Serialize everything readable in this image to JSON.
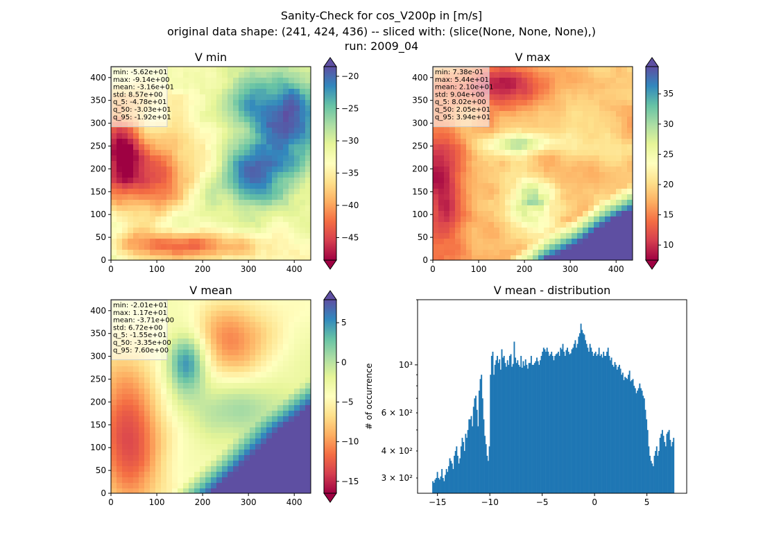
{
  "suptitle": {
    "line1": "Sanity-Check for cos_V200p in [m/s]",
    "line2": "original data shape: (241, 424, 436) -- sliced with: (slice(None, None, None),)",
    "line3": "run: 2009_04"
  },
  "colormap": {
    "name": "Spectral",
    "stops": [
      "#9e0142",
      "#d53e4f",
      "#f46d43",
      "#fdae61",
      "#fee08b",
      "#ffffbf",
      "#e6f598",
      "#abdda4",
      "#66c2a5",
      "#3288bd",
      "#5e4fa2"
    ]
  },
  "bar_color": "#1f77b4",
  "chart_data": [
    {
      "type": "heatmap",
      "title": "V min",
      "xlim": [
        0,
        436
      ],
      "ylim": [
        0,
        424
      ],
      "xticks": [
        "0",
        "100",
        "200",
        "300",
        "400"
      ],
      "yticks": [
        "0",
        "50",
        "100",
        "150",
        "200",
        "250",
        "300",
        "350",
        "400"
      ],
      "colorbar": {
        "min": -48.5,
        "max": -18.5,
        "extend": "both",
        "ticks": [
          -45,
          -40,
          -35,
          -30,
          -25,
          -20
        ],
        "ticklabels": [
          "−45",
          "−40",
          "−35",
          "−30",
          "−25",
          "−20"
        ]
      },
      "stats": [
        "min: -5.62e+01",
        "max: -9.14e+00",
        "mean: -3.16e+01",
        "std: 8.57e+00",
        "q_5: -4.78e+01",
        "q_50: -3.03e+01",
        "q_95: -1.92e+01"
      ]
    },
    {
      "type": "heatmap",
      "title": "V max",
      "xlim": [
        0,
        436
      ],
      "ylim": [
        0,
        424
      ],
      "xticks": [
        "0",
        "100",
        "200",
        "300",
        "400"
      ],
      "yticks": [
        "0",
        "50",
        "100",
        "150",
        "200",
        "250",
        "300",
        "350",
        "400"
      ],
      "colorbar": {
        "min": 7.5,
        "max": 39.5,
        "extend": "both",
        "ticks": [
          10,
          15,
          20,
          25,
          30,
          35
        ],
        "ticklabels": [
          "10",
          "15",
          "20",
          "25",
          "30",
          "35"
        ]
      },
      "stats": [
        "min: 7.38e-01",
        "max: 5.44e+01",
        "mean: 2.10e+01",
        "std: 9.04e+00",
        "q_5: 8.02e+00",
        "q_50: 2.05e+01",
        "q_95: 3.94e+01"
      ]
    },
    {
      "type": "heatmap",
      "title": "V mean",
      "xlim": [
        0,
        436
      ],
      "ylim": [
        0,
        424
      ],
      "xticks": [
        "0",
        "100",
        "200",
        "300",
        "400"
      ],
      "yticks": [
        "0",
        "50",
        "100",
        "150",
        "200",
        "250",
        "300",
        "350",
        "400"
      ],
      "colorbar": {
        "min": -16.5,
        "max": 7.9,
        "extend": "both",
        "ticks": [
          -15,
          -10,
          -5,
          0,
          5
        ],
        "ticklabels": [
          "−15",
          "−10",
          "−5",
          "0",
          "5"
        ]
      },
      "stats": [
        "min: -2.01e+01",
        "max: 1.17e+01",
        "mean: -3.71e+00",
        "std: 6.72e+00",
        "q_5: -1.55e+01",
        "q_50: -3.35e+00",
        "q_95: 7.60e+00"
      ]
    },
    {
      "type": "bar",
      "title": "V mean - distribution",
      "ylabel": "# of occurrence",
      "yscale": "log",
      "xlim": [
        -16.9,
        8.8
      ],
      "ylim": [
        255,
        2000
      ],
      "xticks": [
        -15,
        -10,
        -5,
        0,
        5
      ],
      "xticklabels": [
        "−15",
        "−10",
        "−5",
        "0",
        "5"
      ],
      "yticks": [
        300,
        400,
        600,
        1000
      ],
      "yticklabels": [
        "3 × 10²",
        "4 × 10²",
        "6 × 10²",
        "10³"
      ],
      "bin_start": -15.5,
      "bin_end": 7.6,
      "counts": [
        290,
        285,
        295,
        300,
        320,
        300,
        295,
        305,
        330,
        300,
        290,
        310,
        330,
        320,
        340,
        370,
        360,
        350,
        330,
        380,
        400,
        420,
        380,
        350,
        370,
        420,
        460,
        440,
        400,
        480,
        460,
        500,
        560,
        560,
        580,
        520,
        640,
        700,
        720,
        620,
        520,
        760,
        860,
        900,
        700,
        560,
        470,
        430,
        380,
        360,
        420,
        900,
        1100,
        1150,
        900,
        1000,
        1050,
        1100,
        1020,
        1060,
        950,
        1180,
        1080,
        1100,
        1020,
        980,
        1050,
        1000,
        1100,
        1120,
        980,
        1010,
        1280,
        1080,
        1020,
        1050,
        1000,
        980,
        1100,
        970,
        1040,
        990,
        1060,
        1000,
        960,
        1020,
        1020,
        1100,
        1000,
        1000,
        1020,
        1040,
        1080,
        1040,
        1000,
        1050,
        1100,
        1150,
        1200,
        1180,
        1150,
        1200,
        1150,
        1100,
        1120,
        1150,
        1100,
        1050,
        1100,
        1120,
        1130,
        1150,
        1100,
        1200,
        1180,
        1250,
        1150,
        1100,
        1170,
        1200,
        1150,
        1120,
        1130,
        1180,
        1200,
        1250,
        1300,
        1200,
        1250,
        1350,
        1400,
        1550,
        1450,
        1400,
        1380,
        1300,
        1250,
        1200,
        1150,
        1250,
        1200,
        1150,
        1100,
        1130,
        1150,
        1100,
        1120,
        1200,
        1100,
        1120,
        1080,
        1150,
        1100,
        1100,
        1150,
        1200,
        1100,
        1050,
        1080,
        1000,
        980,
        1030,
        1000,
        950,
        980,
        1000,
        960,
        900,
        920,
        850,
        880,
        870,
        860,
        900,
        940,
        840,
        850,
        860,
        800,
        780,
        740,
        760,
        780,
        820,
        780,
        760,
        720,
        700,
        620,
        560,
        500,
        420,
        380,
        360,
        350,
        340,
        380,
        400,
        420,
        380,
        400,
        460,
        480,
        500,
        470,
        440,
        420,
        480,
        490,
        500,
        450,
        420,
        440,
        460
      ]
    }
  ]
}
